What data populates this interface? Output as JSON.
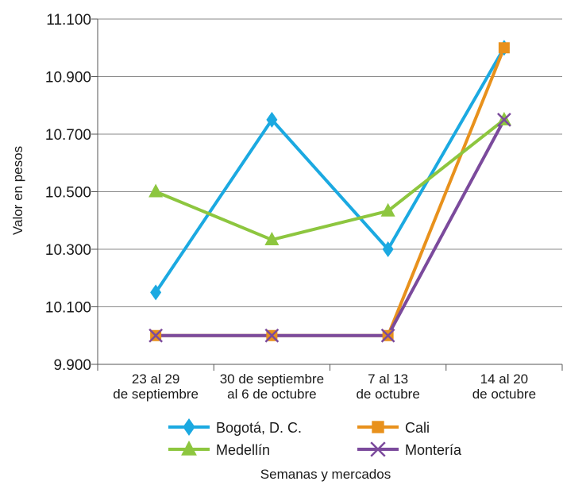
{
  "chart_data": {
    "type": "line",
    "categories": [
      [
        "23 al 29",
        "de septiembre"
      ],
      [
        "30 de septiembre",
        "al 6 de octubre"
      ],
      [
        "7 al 13",
        "de octubre"
      ],
      [
        "14 al 20",
        "de octubre"
      ]
    ],
    "xlabel": "Semanas y mercados",
    "ylabel": "Valor en pesos",
    "ylim": [
      9900,
      11100
    ],
    "yticks": [
      9900,
      10100,
      10300,
      10500,
      10700,
      10900,
      11100
    ],
    "ytick_labels": [
      "9.900",
      "10.100",
      "10.300",
      "10.500",
      "10.700",
      "10.900",
      "11.100"
    ],
    "grid": true,
    "legend_position": "bottom",
    "series": [
      {
        "name": "Bogotá, D. C.",
        "values": [
          10150,
          10750,
          10300,
          11000
        ],
        "color": "#1ba9e1",
        "marker": "diamond"
      },
      {
        "name": "Cali",
        "values": [
          10000,
          10000,
          10000,
          11000
        ],
        "color": "#e8911c",
        "marker": "square"
      },
      {
        "name": "Medellín",
        "values": [
          10500,
          10333,
          10433,
          10750
        ],
        "color": "#8dc63f",
        "marker": "triangle"
      },
      {
        "name": "Montería",
        "values": [
          10000,
          10000,
          10000,
          10750
        ],
        "color": "#7b4a9c",
        "marker": "x"
      }
    ]
  }
}
